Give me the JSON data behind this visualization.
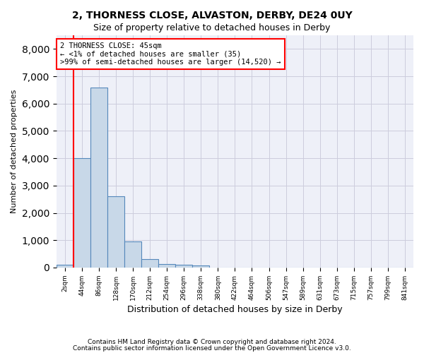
{
  "title_line1": "2, THORNESS CLOSE, ALVASTON, DERBY, DE24 0UY",
  "title_line2": "Size of property relative to detached houses in Derby",
  "xlabel": "Distribution of detached houses by size in Derby",
  "ylabel": "Number of detached properties",
  "footnote1": "Contains HM Land Registry data © Crown copyright and database right 2024.",
  "footnote2": "Contains public sector information licensed under the Open Government Licence v3.0.",
  "annotation_line1": "2 THORNESS CLOSE: 45sqm",
  "annotation_line2": "← <1% of detached houses are smaller (35)",
  "annotation_line3": ">99% of semi-detached houses are larger (14,520) →",
  "bar_color": "#c8d8e8",
  "bar_edge_color": "#5588bb",
  "grid_color": "#ccccdd",
  "background_color": "#eef0f8",
  "ylim": [
    0,
    8500
  ],
  "yticks": [
    0,
    1000,
    2000,
    3000,
    4000,
    5000,
    6000,
    7000,
    8000
  ],
  "bin_labels": [
    "2sqm",
    "44sqm",
    "86sqm",
    "128sqm",
    "170sqm",
    "212sqm",
    "254sqm",
    "296sqm",
    "338sqm",
    "380sqm",
    "422sqm",
    "464sqm",
    "506sqm",
    "547sqm",
    "589sqm",
    "631sqm",
    "673sqm",
    "715sqm",
    "757sqm",
    "799sqm",
    "841sqm"
  ],
  "bar_values": [
    100,
    4000,
    6600,
    2620,
    950,
    310,
    130,
    110,
    80,
    0,
    0,
    0,
    0,
    0,
    0,
    0,
    0,
    0,
    0,
    0,
    0
  ],
  "red_line_x": 0.5
}
